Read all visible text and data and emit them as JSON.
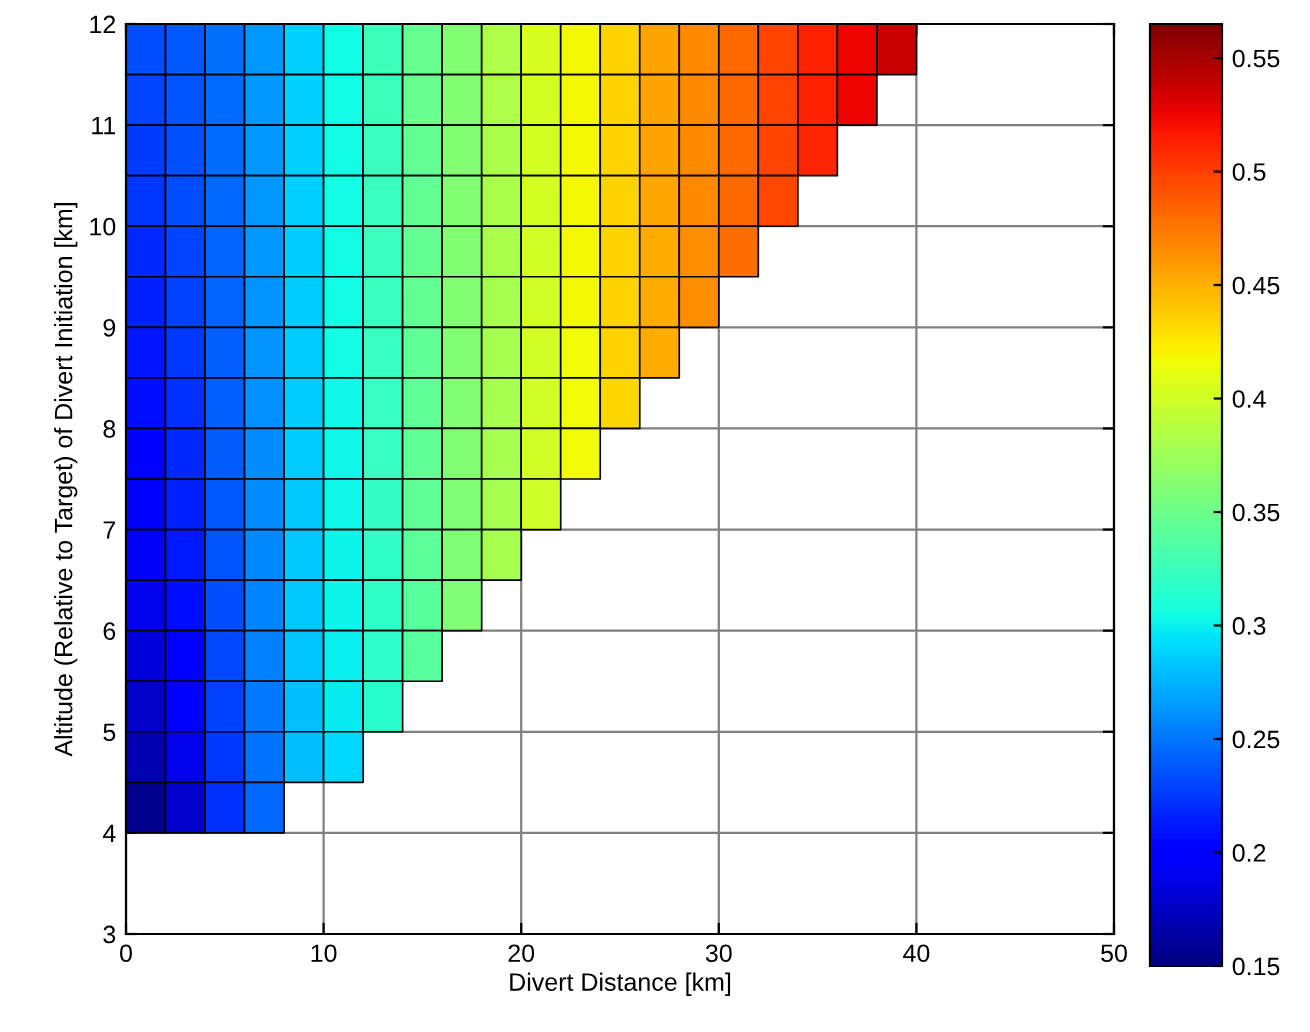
{
  "chart_data": {
    "type": "heatmap",
    "xlabel": "Divert Distance [km]",
    "ylabel": "Altitude (Relative to Target) of Divert Initiation [km]",
    "x": [
      1,
      3,
      5,
      7,
      9,
      11,
      13,
      15,
      17,
      19,
      21,
      23,
      25,
      27,
      29,
      31,
      33,
      35,
      37,
      39
    ],
    "y": [
      11.75,
      11.25,
      10.75,
      10.25,
      9.75,
      9.25,
      8.75,
      8.25,
      7.75,
      7.25,
      6.75,
      6.25,
      5.75,
      5.25,
      4.75,
      4.25
    ],
    "cells": [
      [
        0.234,
        0.238,
        0.248,
        0.265,
        0.287,
        0.305,
        0.326,
        0.347,
        0.362,
        0.382,
        0.403,
        0.419,
        0.435,
        0.456,
        0.467,
        0.481,
        0.497,
        0.512,
        0.526,
        0.538
      ],
      [
        0.231,
        0.237,
        0.247,
        0.265,
        0.287,
        0.305,
        0.326,
        0.347,
        0.362,
        0.382,
        0.402,
        0.419,
        0.435,
        0.455,
        0.467,
        0.481,
        0.497,
        0.512,
        0.526,
        null
      ],
      [
        0.227,
        0.235,
        0.246,
        0.265,
        0.287,
        0.305,
        0.325,
        0.346,
        0.362,
        0.381,
        0.402,
        0.419,
        0.435,
        0.455,
        0.467,
        0.481,
        0.497,
        0.511,
        null,
        null
      ],
      [
        0.223,
        0.233,
        0.245,
        0.264,
        0.287,
        0.305,
        0.325,
        0.346,
        0.362,
        0.381,
        0.402,
        0.418,
        0.435,
        0.454,
        0.467,
        0.481,
        0.496,
        null,
        null,
        null
      ],
      [
        0.219,
        0.231,
        0.244,
        0.264,
        0.286,
        0.305,
        0.324,
        0.345,
        0.361,
        0.381,
        0.401,
        0.418,
        0.434,
        0.453,
        0.466,
        0.48,
        null,
        null,
        null,
        null
      ],
      [
        0.215,
        0.228,
        0.243,
        0.263,
        0.286,
        0.305,
        0.324,
        0.345,
        0.361,
        0.38,
        0.401,
        0.418,
        0.434,
        0.452,
        0.466,
        null,
        null,
        null,
        null,
        null
      ],
      [
        0.211,
        0.225,
        0.242,
        0.262,
        0.286,
        0.305,
        0.323,
        0.344,
        0.361,
        0.38,
        0.4,
        0.417,
        0.434,
        0.452,
        null,
        null,
        null,
        null,
        null,
        null
      ],
      [
        0.207,
        0.222,
        0.241,
        0.261,
        0.285,
        0.304,
        0.322,
        0.344,
        0.361,
        0.38,
        0.4,
        0.417,
        0.433,
        null,
        null,
        null,
        null,
        null,
        null,
        null
      ],
      [
        0.203,
        0.219,
        0.24,
        0.26,
        0.285,
        0.304,
        0.322,
        0.343,
        0.361,
        0.38,
        0.4,
        0.416,
        null,
        null,
        null,
        null,
        null,
        null,
        null,
        null
      ],
      [
        0.199,
        0.216,
        0.238,
        0.259,
        0.284,
        0.303,
        0.321,
        0.343,
        0.36,
        0.38,
        0.399,
        null,
        null,
        null,
        null,
        null,
        null,
        null,
        null,
        null
      ],
      [
        0.194,
        0.212,
        0.236,
        0.258,
        0.284,
        0.302,
        0.32,
        0.342,
        0.36,
        0.379,
        null,
        null,
        null,
        null,
        null,
        null,
        null,
        null,
        null,
        null
      ],
      [
        0.189,
        0.208,
        0.234,
        0.256,
        0.283,
        0.301,
        0.319,
        0.341,
        0.36,
        null,
        null,
        null,
        null,
        null,
        null,
        null,
        null,
        null,
        null,
        null
      ],
      [
        0.183,
        0.203,
        0.232,
        0.254,
        0.282,
        0.3,
        0.318,
        0.34,
        null,
        null,
        null,
        null,
        null,
        null,
        null,
        null,
        null,
        null,
        null,
        null
      ],
      [
        0.176,
        0.197,
        0.229,
        0.252,
        0.281,
        0.298,
        0.316,
        null,
        null,
        null,
        null,
        null,
        null,
        null,
        null,
        null,
        null,
        null,
        null,
        null
      ],
      [
        0.168,
        0.19,
        0.226,
        0.249,
        0.28,
        0.29,
        null,
        null,
        null,
        null,
        null,
        null,
        null,
        null,
        null,
        null,
        null,
        null,
        null,
        null
      ],
      [
        0.155,
        0.178,
        0.222,
        0.245,
        null,
        null,
        null,
        null,
        null,
        null,
        null,
        null,
        null,
        null,
        null,
        null,
        null,
        null,
        null,
        null
      ]
    ],
    "xlim": [
      0,
      50
    ],
    "xticks": [
      0,
      10,
      20,
      30,
      40,
      50
    ],
    "ylim": [
      3,
      12
    ],
    "yticks": [
      3,
      4,
      5,
      6,
      7,
      8,
      9,
      10,
      11,
      12
    ],
    "clim": [
      0.15,
      0.565
    ],
    "cticks": [
      0.15,
      0.2,
      0.25,
      0.3,
      0.35,
      0.4,
      0.45,
      0.5,
      0.55
    ],
    "grid": true
  }
}
